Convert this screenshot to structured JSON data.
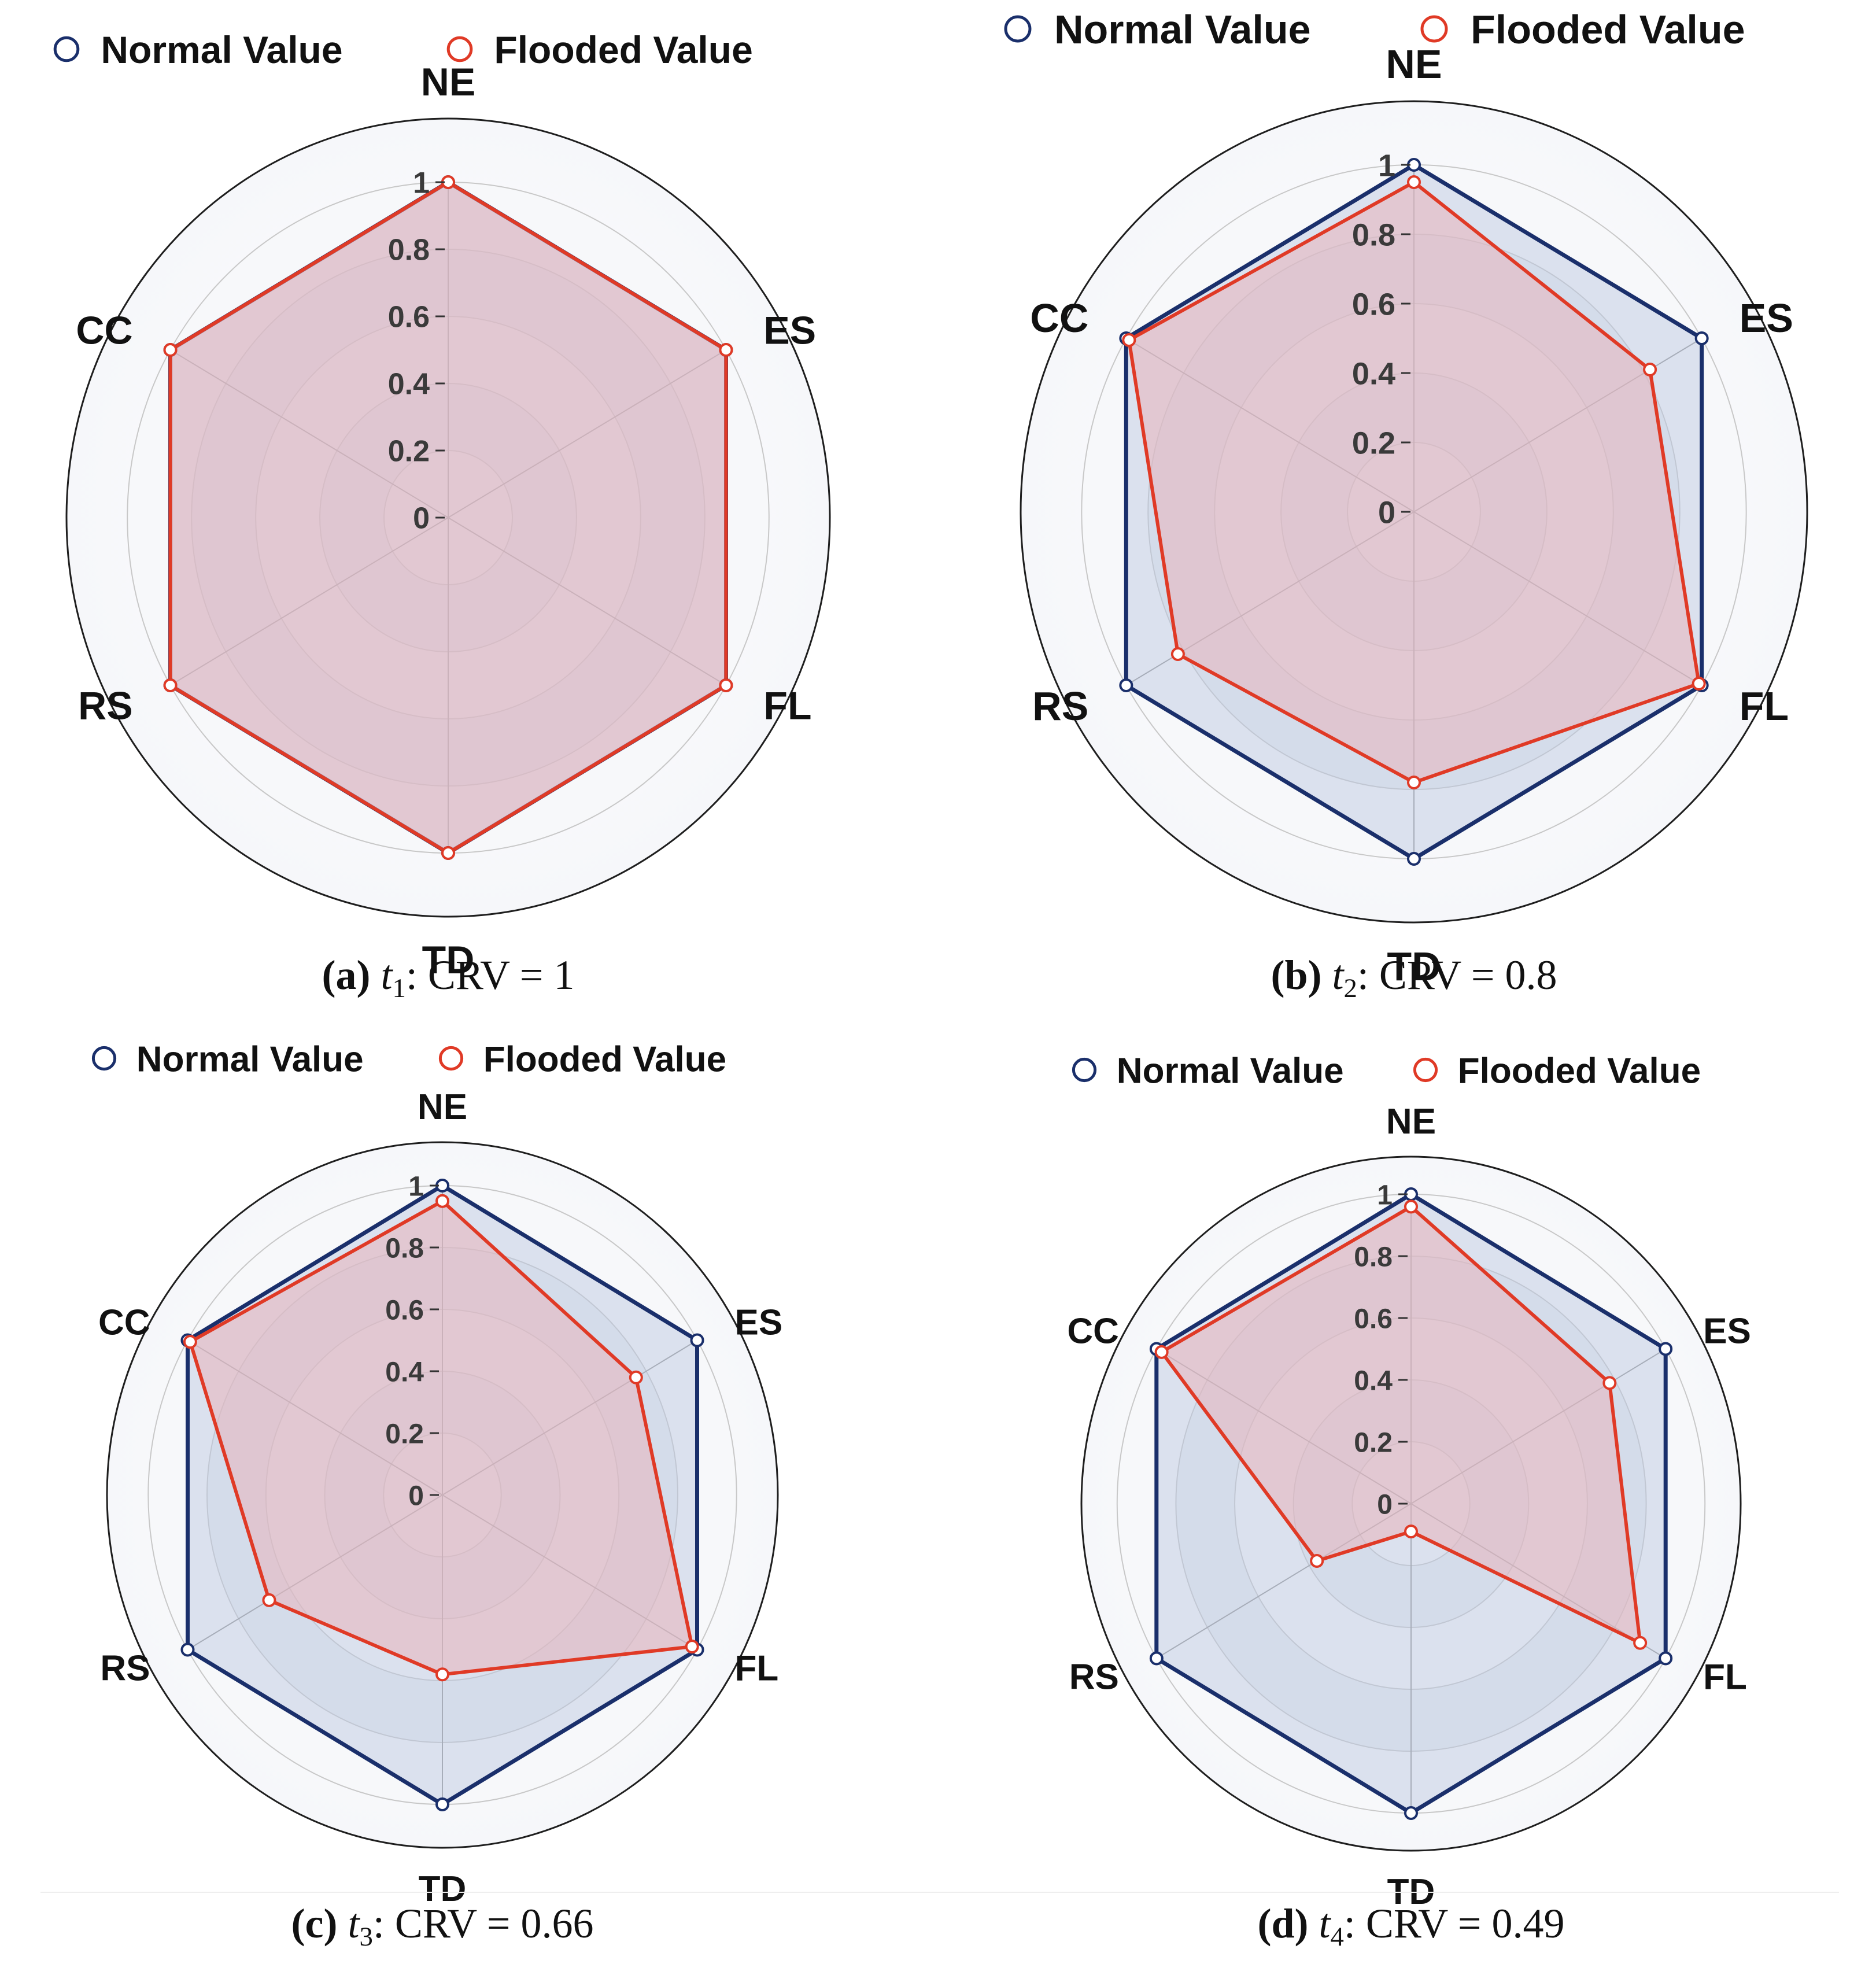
{
  "figure_title": "Radar comparison of normal and flooded values",
  "colors": {
    "normal": "#1a2f6b",
    "normal_fill": "#b9c6df",
    "flooded": "#e03a26",
    "flooded_fill": "#e8b4bc",
    "outer_ring": "#1e1e1e",
    "grid": "#9a9a9a"
  },
  "chart_data": [
    {
      "type": "radar",
      "panel": "a",
      "caption": {
        "label": "(a)",
        "var": "t",
        "sub": "1",
        "text": ": CRV = 1"
      },
      "legend": {
        "normal": "Normal Value",
        "flooded": "Flooded Value"
      },
      "axes": [
        "NE",
        "ES",
        "FL",
        "TD",
        "RS",
        "CC"
      ],
      "ticks": [
        "0",
        "0.2",
        "0.4",
        "0.6",
        "0.8",
        "1"
      ],
      "range": [
        0,
        1
      ],
      "series": [
        {
          "name": "Normal Value",
          "values": [
            1,
            1,
            1,
            1,
            1,
            1
          ]
        },
        {
          "name": "Flooded Value",
          "values": [
            1,
            1,
            1,
            1,
            1,
            1
          ]
        }
      ]
    },
    {
      "type": "radar",
      "panel": "b",
      "caption": {
        "label": "(b)",
        "var": "t",
        "sub": "2",
        "text": ": CRV = 0.8"
      },
      "legend": {
        "normal": "Normal Value",
        "flooded": "Flooded Value"
      },
      "axes": [
        "NE",
        "ES",
        "FL",
        "TD",
        "RS",
        "CC"
      ],
      "ticks": [
        "0",
        "0.2",
        "0.4",
        "0.6",
        "0.8",
        "1"
      ],
      "range": [
        0,
        1
      ],
      "series": [
        {
          "name": "Normal Value",
          "values": [
            1,
            1,
            1,
            1,
            1,
            1
          ]
        },
        {
          "name": "Flooded Value",
          "values": [
            0.95,
            0.82,
            0.99,
            0.78,
            0.82,
            0.99
          ]
        }
      ]
    },
    {
      "type": "radar",
      "panel": "c",
      "caption": {
        "label": "(c)",
        "var": "t",
        "sub": "3",
        "text": ": CRV = 0.66"
      },
      "legend": {
        "normal": "Normal Value",
        "flooded": "Flooded Value"
      },
      "axes": [
        "NE",
        "ES",
        "FL",
        "TD",
        "RS",
        "CC"
      ],
      "ticks": [
        "0",
        "0.2",
        "0.4",
        "0.6",
        "0.8",
        "1"
      ],
      "range": [
        0,
        1
      ],
      "series": [
        {
          "name": "Normal Value",
          "values": [
            1,
            1,
            1,
            1,
            1,
            1
          ]
        },
        {
          "name": "Flooded Value",
          "values": [
            0.95,
            0.76,
            0.98,
            0.58,
            0.68,
            0.99
          ]
        }
      ]
    },
    {
      "type": "radar",
      "panel": "d",
      "caption": {
        "label": "(d)",
        "var": "t",
        "sub": "4",
        "text": ": CRV = 0.49"
      },
      "legend": {
        "normal": "Normal Value",
        "flooded": "Flooded Value"
      },
      "axes": [
        "NE",
        "ES",
        "FL",
        "TD",
        "RS",
        "CC"
      ],
      "ticks": [
        "0",
        "0.2",
        "0.4",
        "0.6",
        "0.8",
        "1"
      ],
      "range": [
        0,
        1
      ],
      "series": [
        {
          "name": "Normal Value",
          "values": [
            1,
            1,
            1,
            1,
            1,
            1
          ]
        },
        {
          "name": "Flooded Value",
          "values": [
            0.96,
            0.78,
            0.9,
            0.09,
            0.37,
            0.98
          ]
        }
      ]
    }
  ]
}
